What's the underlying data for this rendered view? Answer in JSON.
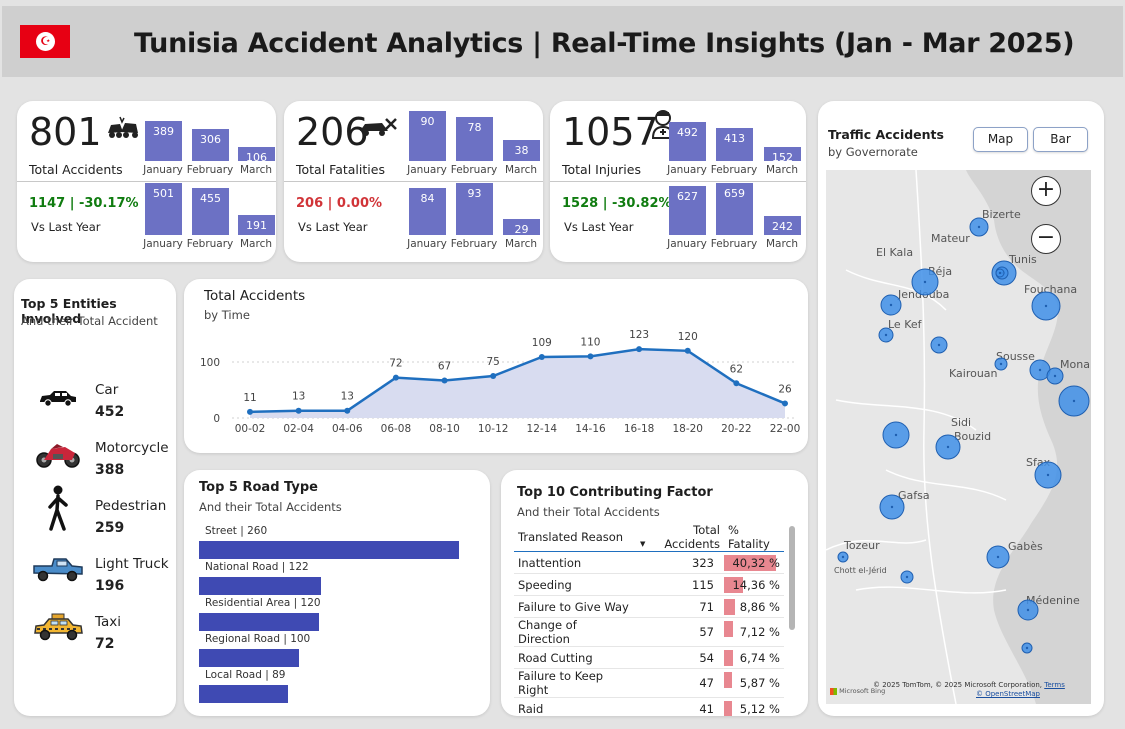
{
  "header": {
    "title": "Tunisia Accident Analytics | Real-Time Insights (Jan - Mar 2025)",
    "flag_color": "#e70013"
  },
  "kpis": [
    {
      "value": "801",
      "label": "Total Accidents",
      "icon": "car-crash-icon",
      "current": [
        {
          "month": "January",
          "value": 389
        },
        {
          "month": "February",
          "value": 306
        },
        {
          "month": "March",
          "value": 106
        }
      ],
      "compare_text": "1147 | -30.17%",
      "compare_label": "Vs Last Year",
      "compare_color": "#107c10",
      "previous": [
        {
          "month": "January",
          "value": 501
        },
        {
          "month": "February",
          "value": 455
        },
        {
          "month": "March",
          "value": 191
        }
      ]
    },
    {
      "value": "206",
      "label": "Total Fatalities",
      "icon": "car-wreck-icon",
      "current": [
        {
          "month": "January",
          "value": 90
        },
        {
          "month": "February",
          "value": 78
        },
        {
          "month": "March",
          "value": 38
        }
      ],
      "compare_text": "206 | 0.00%",
      "compare_label": "Vs Last Year",
      "compare_color": "#d13438",
      "previous": [
        {
          "month": "January",
          "value": 84
        },
        {
          "month": "February",
          "value": 93
        },
        {
          "month": "March",
          "value": 29
        }
      ]
    },
    {
      "value": "1057",
      "label": "Total Injuries",
      "icon": "injured-person-icon",
      "current": [
        {
          "month": "January",
          "value": 492
        },
        {
          "month": "February",
          "value": 413
        },
        {
          "month": "March",
          "value": 152
        }
      ],
      "compare_text": "1528 | -30.82%",
      "compare_label": "Vs Last Year",
      "compare_color": "#107c10",
      "previous": [
        {
          "month": "January",
          "value": 627
        },
        {
          "month": "February",
          "value": 659
        },
        {
          "month": "March",
          "value": 242
        }
      ]
    }
  ],
  "entities": {
    "title": "Top 5 Entities Involved",
    "subtitle": "And their Total Accident",
    "items": [
      {
        "name": "Car",
        "value": "452",
        "icon": "car-icon"
      },
      {
        "name": "Motorcycle",
        "value": "388",
        "icon": "motorcycle-icon"
      },
      {
        "name": "Pedestrian",
        "value": "259",
        "icon": "pedestrian-icon"
      },
      {
        "name": "Light Truck",
        "value": "196",
        "icon": "pickup-truck-icon"
      },
      {
        "name": "Taxi",
        "value": "72",
        "icon": "taxi-icon"
      }
    ]
  },
  "time_chart": {
    "title": "Total Accidents",
    "subtitle": "by Time",
    "chart_data": {
      "type": "area",
      "categories": [
        "00-02",
        "02-04",
        "04-06",
        "06-08",
        "08-10",
        "10-12",
        "12-14",
        "14-16",
        "16-18",
        "18-20",
        "20-22",
        "22-00"
      ],
      "values": [
        11,
        13,
        13,
        72,
        67,
        75,
        109,
        110,
        123,
        120,
        62,
        26
      ],
      "y_ticks": [
        0,
        100
      ],
      "ylim": [
        0,
        130
      ],
      "grid": true,
      "line_color": "#1f6fbf",
      "fill_color": "#d8dcf0"
    }
  },
  "road_types": {
    "title": "Top 5 Road Type",
    "subtitle": "And their Total Accidents",
    "chart_data": {
      "type": "bar",
      "categories": [
        "Street",
        "National Road",
        "Residential Area",
        "Regional Road",
        "Local Road"
      ],
      "values": [
        260,
        122,
        120,
        100,
        89
      ],
      "labels": [
        "Street | 260",
        "National Road | 122",
        "Residential Area | 120",
        "Regional Road | 100",
        "Local Road | 89"
      ],
      "bar_color": "#3f4ab3"
    }
  },
  "factors": {
    "title": "Top 10 Contributing Factor",
    "subtitle": "And their Total Accidents",
    "columns": [
      "Translated Reason",
      "Total Accidents",
      "% Fatality"
    ],
    "rows": [
      {
        "reason": "Inattention",
        "total": "323",
        "pct": "40,32 %",
        "pct_value": 40.32
      },
      {
        "reason": "Speeding",
        "total": "115",
        "pct": "14,36 %",
        "pct_value": 14.36
      },
      {
        "reason": "Failure to Give Way",
        "total": "71",
        "pct": "8,86 %",
        "pct_value": 8.86
      },
      {
        "reason": "Change of Direction",
        "total": "57",
        "pct": "7,12 %",
        "pct_value": 7.12
      },
      {
        "reason": "Road Cutting",
        "total": "54",
        "pct": "6,74 %",
        "pct_value": 6.74
      },
      {
        "reason": "Failure to Keep Right",
        "total": "47",
        "pct": "5,87 %",
        "pct_value": 5.87
      },
      {
        "reason": "Raid",
        "total": "41",
        "pct": "5,12 %",
        "pct_value": 5.12
      }
    ]
  },
  "map": {
    "title": "Traffic Accidents",
    "subtitle": "by Governorate",
    "buttons": [
      "Map",
      "Bar"
    ],
    "zoom_in": "+",
    "zoom_out": "−",
    "places": [
      "Bizerte",
      "Mateur",
      "Tunis",
      "Fouchana",
      "El Kala",
      "Béja",
      "Jendouba",
      "Le Kef",
      "Sousse",
      "Mona",
      "Kairouan",
      "Sidi Bouzid",
      "Sfax",
      "Gafsa",
      "Tozeur",
      "Gabès",
      "Chott el-Jérid",
      "Médenine"
    ],
    "copyright": "© 2025 TomTom, © 2025 Microsoft Corporation,",
    "terms": "Terms",
    "osm": "© OpenStreetMap",
    "bing": "Microsoft Bing"
  }
}
